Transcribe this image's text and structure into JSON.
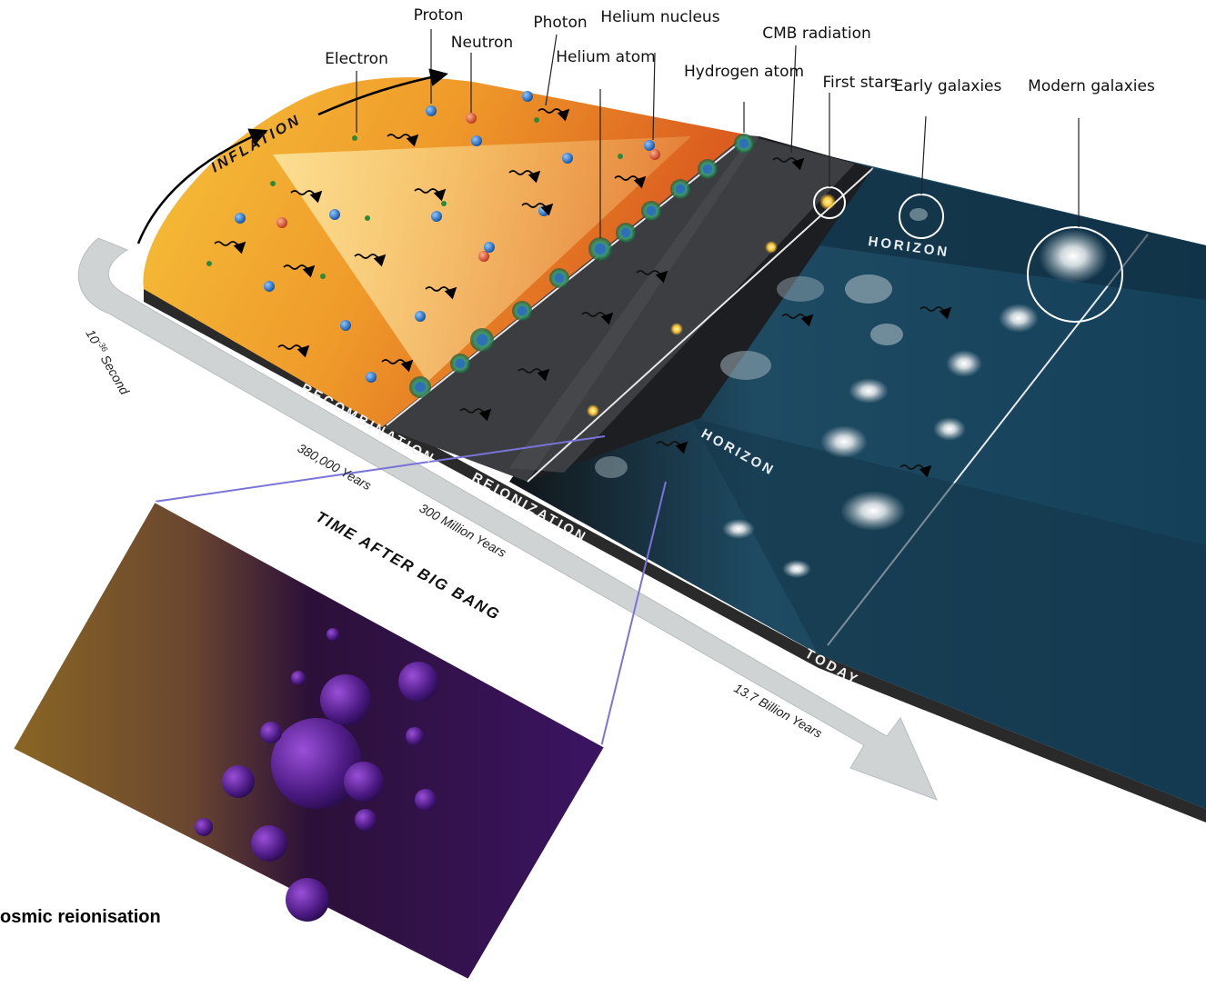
{
  "labels": {
    "proton": "Proton",
    "neutron": "Neutron",
    "photon": "Photon",
    "helium_nucleus": "Helium nucleus",
    "electron": "Electron",
    "helium_atom": "Helium atom",
    "hydrogen_atom": "Hydrogen atom",
    "cmb_radiation": "CMB radiation",
    "first_stars": "First stars",
    "early_galaxies": "Early galaxies",
    "modern_galaxies": "Modern galaxies"
  },
  "slab_labels": {
    "inflation": "INFLATION",
    "recombination": "RECOMBINATION",
    "reionization": "REIONIZATION",
    "today": "TODAY",
    "horizon_upper": "HORIZON",
    "horizon_lower": "HORIZON"
  },
  "timeline": {
    "time_after_big_bang": "TIME AFTER BIG BANG",
    "t0_base": "10",
    "t0_exp": "-36",
    "t0_unit": "Second",
    "t1": "380,000 Years",
    "t2": "300 Million Years",
    "t3": "13.7 Billion Years"
  },
  "caption": "osmic reionisation",
  "colors": {
    "early_universe": "#e9a42a",
    "recombination_zone": "#3a3a3a",
    "dark_ages": "#1c1e22",
    "modern_universe": "#1d5572",
    "timeline_arrow": "#cfd3d4",
    "zoom_lines": "#7b74d8",
    "inset_purple": "#4a1a78",
    "inset_gold": "#8a6624"
  }
}
